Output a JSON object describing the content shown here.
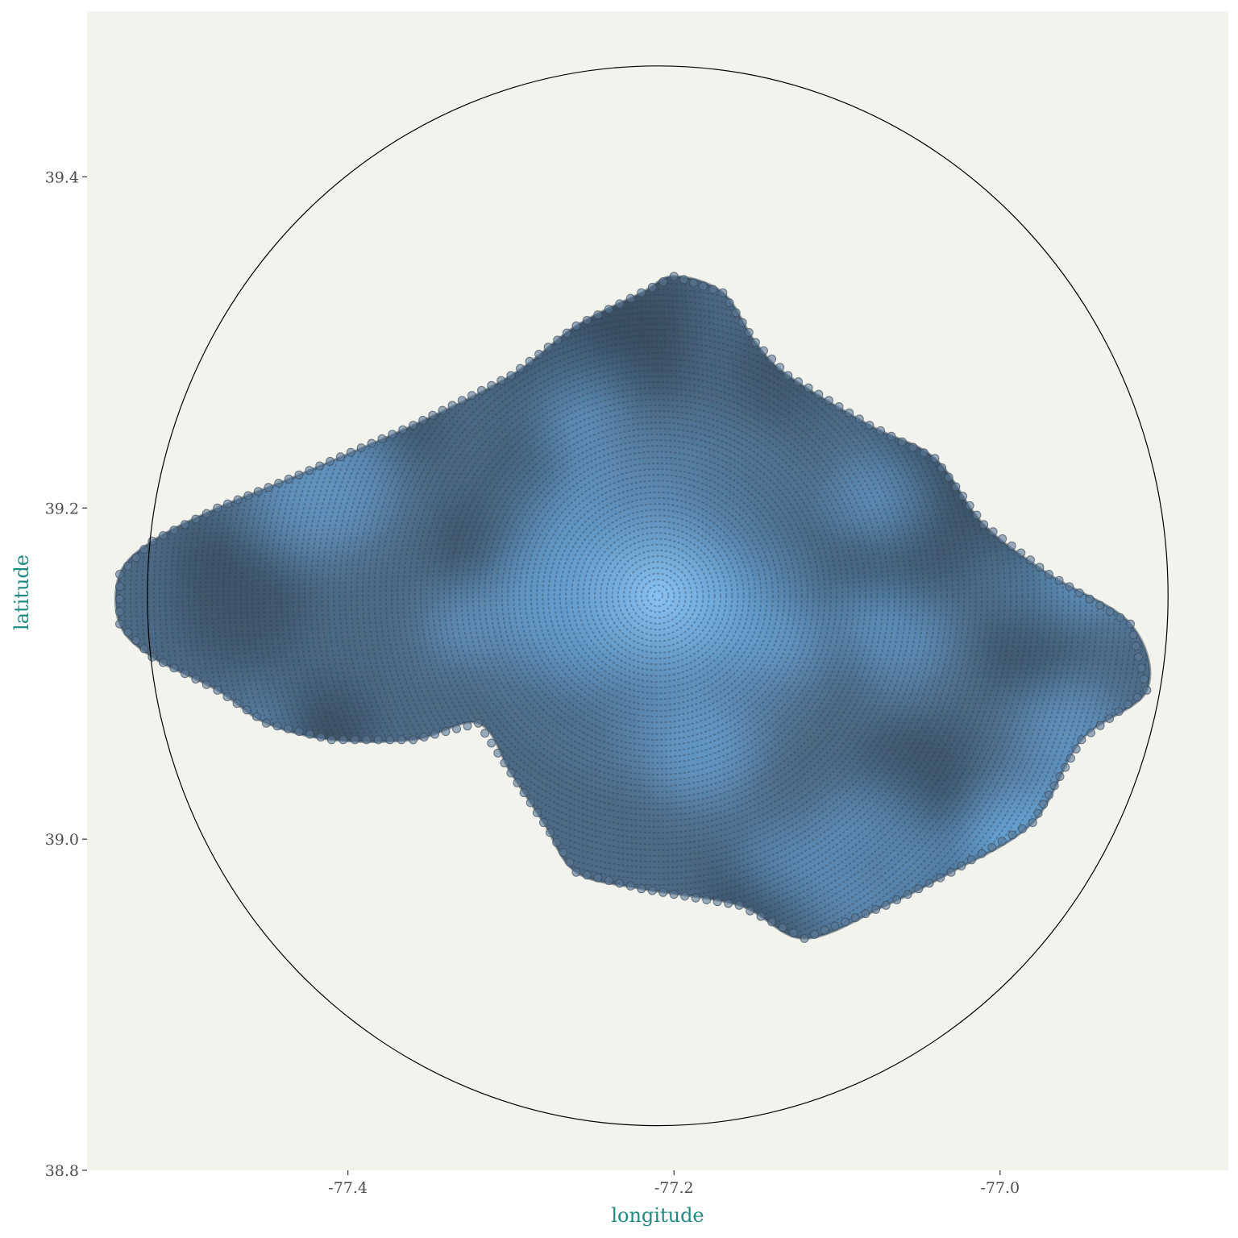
{
  "chart_data": {
    "type": "scatter",
    "title": "",
    "xlabel": "longitude",
    "ylabel": "latitude",
    "xlim": [
      -77.56,
      -76.86
    ],
    "ylim": [
      38.8,
      39.5
    ],
    "x_ticks": [
      -77.4,
      -77.2,
      -77.0
    ],
    "x_tick_labels": [
      "-77.4",
      "-77.2",
      "-77.0"
    ],
    "y_ticks": [
      38.8,
      39.0,
      39.2,
      39.4
    ],
    "y_tick_labels": [
      "38.8",
      "39.0",
      "39.2",
      "39.4"
    ],
    "grid": false,
    "legend": "none",
    "point_fill": "#6fb0e8",
    "point_stroke": "#3b4a5a",
    "panel_background": "#f3f3ee",
    "circle_boundary": {
      "center": [
        -77.21,
        39.147
      ],
      "radius_longitude": 0.313,
      "radius_latitude": 0.32
    },
    "center_point": [
      -77.21,
      39.147
    ],
    "region_outline": [
      [
        -77.2,
        39.34
      ],
      [
        -77.17,
        39.33
      ],
      [
        -77.15,
        39.3
      ],
      [
        -77.13,
        39.28
      ],
      [
        -77.08,
        39.25
      ],
      [
        -77.04,
        39.23
      ],
      [
        -77.01,
        39.19
      ],
      [
        -76.97,
        39.16
      ],
      [
        -76.92,
        39.13
      ],
      [
        -76.91,
        39.09
      ],
      [
        -76.95,
        39.06
      ],
      [
        -76.98,
        39.01
      ],
      [
        -77.03,
        38.98
      ],
      [
        -77.07,
        38.96
      ],
      [
        -77.12,
        38.94
      ],
      [
        -77.16,
        38.96
      ],
      [
        -77.22,
        38.97
      ],
      [
        -77.26,
        38.98
      ],
      [
        -77.28,
        39.01
      ],
      [
        -77.3,
        39.04
      ],
      [
        -77.32,
        39.07
      ],
      [
        -77.36,
        39.06
      ],
      [
        -77.41,
        39.06
      ],
      [
        -77.45,
        39.07
      ],
      [
        -77.48,
        39.09
      ],
      [
        -77.52,
        39.11
      ],
      [
        -77.54,
        39.13
      ],
      [
        -77.54,
        39.16
      ],
      [
        -77.52,
        39.18
      ],
      [
        -77.48,
        39.2
      ],
      [
        -77.43,
        39.22
      ],
      [
        -77.36,
        39.25
      ],
      [
        -77.3,
        39.28
      ],
      [
        -77.26,
        39.31
      ],
      [
        -77.22,
        39.33
      ]
    ]
  }
}
